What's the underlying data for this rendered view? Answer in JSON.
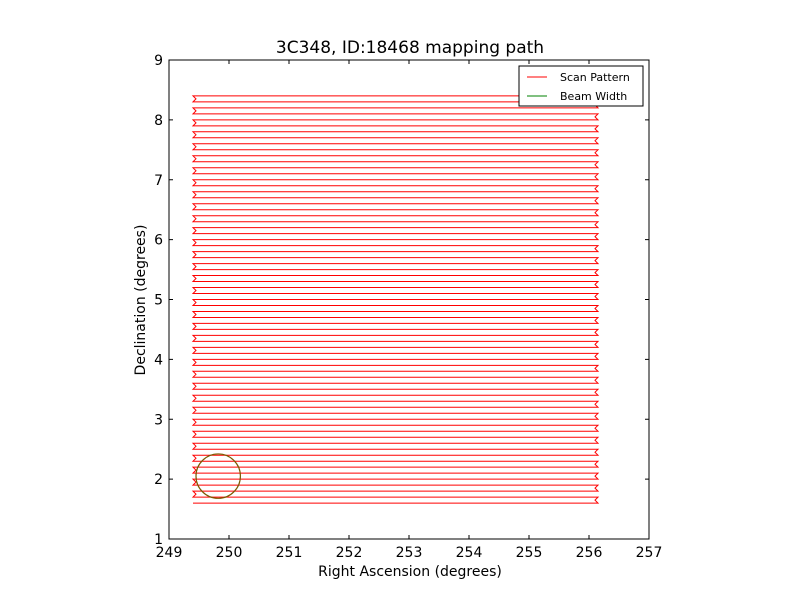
{
  "chart_data": {
    "type": "line",
    "title": "3C348, ID:18468 mapping path",
    "xlabel": "Right Ascension (degrees)",
    "ylabel": "Declination (degrees)",
    "xlim": [
      249,
      257
    ],
    "ylim": [
      1,
      9
    ],
    "xticks": [
      249,
      250,
      251,
      252,
      253,
      254,
      255,
      256,
      257
    ],
    "yticks": [
      1,
      2,
      3,
      4,
      5,
      6,
      7,
      8,
      9
    ],
    "grid": false,
    "legend": {
      "position": "top-right",
      "entries": [
        {
          "label": "Scan Pattern",
          "color": "#ff0000"
        },
        {
          "label": "Beam Width",
          "color": "#008000"
        }
      ]
    },
    "series": [
      {
        "name": "Scan Pattern",
        "color": "#ff0000",
        "kind": "raster",
        "ra_left": 249.4,
        "ra_right": 256.15,
        "dec_bottom": 1.6,
        "dec_top": 8.36,
        "row_step": 0.1,
        "points": [
          [
            249.4,
            1.6
          ],
          [
            256.15,
            1.6
          ],
          [
            256.15,
            8.36
          ],
          [
            249.4,
            8.36
          ]
        ]
      },
      {
        "name": "Beam Width",
        "color": "#008000",
        "kind": "circle",
        "center": [
          249.82,
          2.05
        ],
        "radius_deg": 0.37
      }
    ]
  }
}
